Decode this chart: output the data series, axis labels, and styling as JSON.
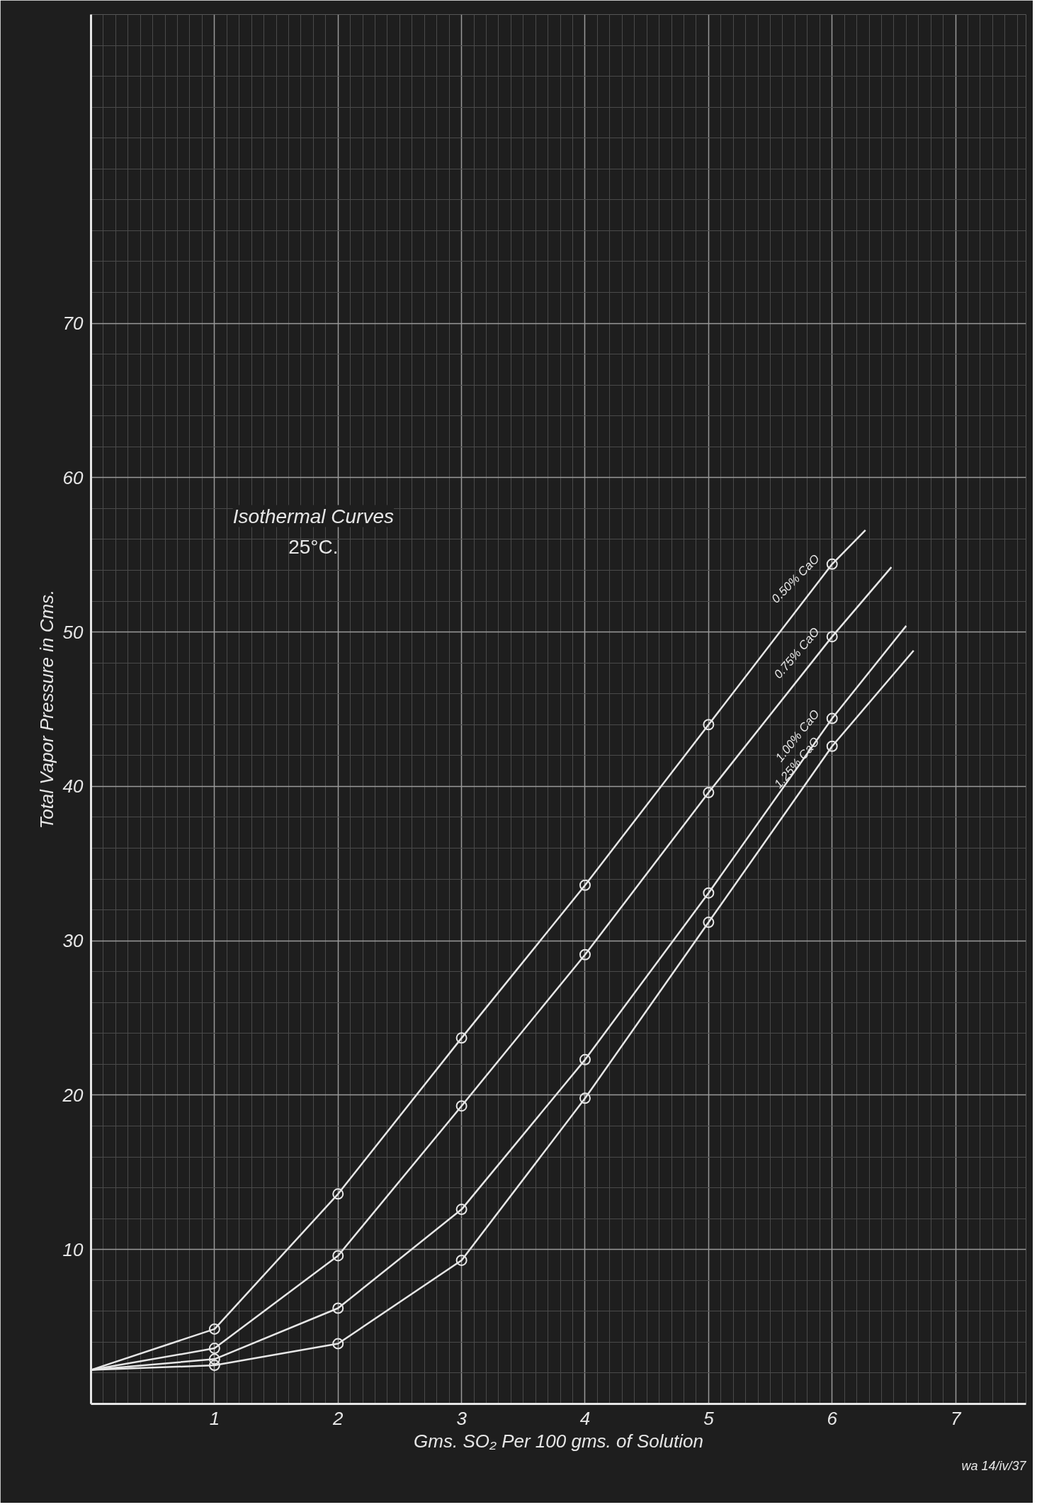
{
  "chart_data": {
    "type": "line",
    "title": "Isothermal Curves",
    "subtitle": "25°C.",
    "xlabel": "Gms. SO₂ Per 100 gms. of Solution",
    "ylabel": "Total Vapor Pressure in Cms.",
    "annotations": [
      "wa 14/iv/37"
    ],
    "xlim": [
      0,
      7.57
    ],
    "ylim": [
      0,
      90
    ],
    "xticks": [
      1,
      2,
      3,
      4,
      5,
      6,
      7
    ],
    "yticks": [
      10,
      20,
      30,
      40,
      50,
      60,
      70
    ],
    "grid": true,
    "series": [
      {
        "name": "0.50% CaO",
        "color": "#e6e6e6",
        "marker": "none",
        "x": [
          0,
          1,
          2,
          3,
          4,
          5,
          6,
          6.27
        ],
        "values": [
          2.2,
          4.85,
          13.6,
          23.7,
          33.6,
          44.0,
          54.4,
          56.6
        ]
      },
      {
        "name": "0.75% CaO",
        "color": "#e6e6e6",
        "marker": "none",
        "x": [
          0,
          1,
          2,
          3,
          4,
          5,
          6,
          6.48
        ],
        "values": [
          2.2,
          3.6,
          9.6,
          19.3,
          29.1,
          39.6,
          49.7,
          54.2
        ]
      },
      {
        "name": "1.00% CaO",
        "color": "#e6e6e6",
        "marker": "none",
        "x": [
          0,
          1,
          2,
          3,
          4,
          5,
          6,
          6.6
        ],
        "values": [
          2.2,
          2.9,
          6.2,
          12.6,
          22.3,
          33.1,
          44.4,
          50.4
        ]
      },
      {
        "name": "1.25% CaO",
        "color": "#e6e6e6",
        "marker": "none",
        "x": [
          0,
          1,
          2,
          3,
          4,
          5,
          6,
          6.66
        ],
        "values": [
          2.2,
          2.5,
          3.9,
          9.3,
          19.8,
          31.2,
          42.6,
          48.8
        ]
      },
      {
        "color": "#e6e6e6",
        "type": "scatter",
        "marker": "circle",
        "x": [
          1,
          2,
          3,
          4,
          5,
          6
        ],
        "values": [
          4.85,
          13.6,
          23.7,
          33.6,
          44.0,
          54.4
        ]
      },
      {
        "color": "#e6e6e6",
        "type": "scatter",
        "marker": "circle",
        "x": [
          1,
          2,
          3,
          4,
          5,
          6
        ],
        "values": [
          3.6,
          9.6,
          19.3,
          29.1,
          39.6,
          49.7
        ]
      },
      {
        "color": "#e6e6e6",
        "type": "scatter",
        "marker": "circle",
        "x": [
          1,
          2,
          3,
          4,
          5,
          6
        ],
        "values": [
          2.9,
          6.2,
          12.6,
          22.3,
          33.1,
          44.4
        ]
      },
      {
        "color": "#e6e6e6",
        "type": "scatter",
        "marker": "circle",
        "x": [
          1,
          2,
          3,
          4,
          5,
          6
        ],
        "values": [
          2.5,
          3.9,
          9.3,
          19.8,
          31.2,
          42.6
        ]
      }
    ]
  }
}
